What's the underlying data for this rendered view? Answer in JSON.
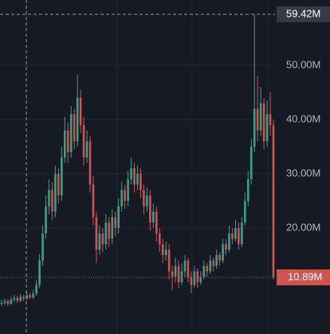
{
  "chart_data": {
    "type": "candlestick",
    "ylim": [
      0.44,
      62.06
    ],
    "yticks": [
      {
        "value": 20,
        "label": "20.00M"
      },
      {
        "value": 30,
        "label": "30.00M"
      },
      {
        "value": 40,
        "label": "40.00M"
      },
      {
        "value": 50,
        "label": "50.00M"
      }
    ],
    "grid": true,
    "up_color": "#3d9e8c",
    "down_color": "#d0544e",
    "crosshair": {
      "value": 59.42,
      "label": "59.42M"
    },
    "last_price": {
      "value": 10.89,
      "label": "10.89M"
    },
    "candles": [
      [
        6.0,
        6.8,
        5.6,
        6.2
      ],
      [
        6.2,
        7.0,
        5.8,
        6.5
      ],
      [
        6.5,
        6.9,
        5.6,
        6.0
      ],
      [
        6.0,
        7.3,
        5.8,
        6.8
      ],
      [
        6.8,
        7.6,
        6.4,
        7.1
      ],
      [
        7.1,
        7.5,
        6.1,
        6.6
      ],
      [
        6.6,
        7.8,
        6.3,
        7.3
      ],
      [
        7.3,
        7.7,
        6.5,
        7.0
      ],
      [
        7.0,
        8.2,
        6.7,
        7.6
      ],
      [
        7.6,
        8.0,
        6.8,
        7.2
      ],
      [
        7.2,
        8.6,
        6.9,
        7.9
      ],
      [
        7.9,
        10.4,
        7.5,
        9.5
      ],
      [
        9.5,
        15.2,
        9.0,
        14.0
      ],
      [
        14.0,
        20.5,
        13.0,
        19.0
      ],
      [
        19.0,
        26.0,
        18.0,
        24.0
      ],
      [
        24.0,
        29.0,
        22.5,
        27.0
      ],
      [
        27.0,
        28.5,
        21.5,
        23.0
      ],
      [
        23.0,
        31.5,
        22.0,
        30.0
      ],
      [
        30.0,
        31.0,
        24.5,
        26.0
      ],
      [
        26.0,
        35.0,
        25.0,
        33.0
      ],
      [
        33.0,
        40.5,
        32.0,
        38.0
      ],
      [
        38.0,
        39.5,
        32.0,
        34.0
      ],
      [
        34.0,
        42.5,
        33.0,
        41.0
      ],
      [
        41.0,
        42.0,
        34.5,
        36.0
      ],
      [
        36.0,
        48.3,
        35.0,
        44.0
      ],
      [
        44.0,
        45.5,
        37.5,
        39.0
      ],
      [
        39.0,
        40.5,
        31.5,
        33.0
      ],
      [
        33.0,
        38.0,
        32.0,
        36.0
      ],
      [
        36.0,
        37.0,
        26.5,
        28.0
      ],
      [
        28.0,
        29.5,
        20.5,
        22.0
      ],
      [
        22.0,
        23.0,
        13.5,
        16.0
      ],
      [
        16.0,
        20.5,
        15.0,
        19.0
      ],
      [
        19.0,
        20.0,
        15.5,
        17.0
      ],
      [
        17.0,
        22.5,
        16.0,
        21.0
      ],
      [
        21.0,
        22.0,
        16.5,
        18.0
      ],
      [
        18.0,
        23.5,
        17.0,
        22.0
      ],
      [
        22.0,
        23.0,
        18.5,
        20.0
      ],
      [
        20.0,
        25.5,
        19.0,
        24.0
      ],
      [
        24.0,
        28.5,
        23.0,
        27.0
      ],
      [
        27.0,
        28.0,
        23.5,
        25.0
      ],
      [
        25.0,
        30.5,
        24.0,
        29.0
      ],
      [
        29.0,
        33.0,
        28.0,
        31.0
      ],
      [
        31.0,
        32.0,
        26.5,
        28.0
      ],
      [
        28.0,
        31.5,
        27.0,
        30.0
      ],
      [
        30.0,
        31.0,
        25.5,
        27.0
      ],
      [
        27.0,
        28.0,
        22.5,
        24.0
      ],
      [
        24.0,
        27.5,
        23.0,
        26.0
      ],
      [
        26.0,
        27.0,
        19.5,
        21.0
      ],
      [
        21.0,
        24.5,
        20.0,
        23.0
      ],
      [
        23.0,
        24.0,
        17.5,
        19.0
      ],
      [
        19.0,
        20.0,
        15.5,
        17.0
      ],
      [
        17.0,
        18.0,
        13.5,
        15.0
      ],
      [
        15.0,
        17.5,
        14.0,
        16.0
      ],
      [
        16.0,
        17.0,
        10.5,
        12.0
      ],
      [
        12.0,
        13.0,
        8.5,
        11.0
      ],
      [
        11.0,
        14.5,
        10.0,
        13.0
      ],
      [
        13.0,
        14.0,
        9.0,
        10.0
      ],
      [
        10.0,
        13.5,
        9.5,
        12.0
      ],
      [
        12.0,
        15.0,
        11.0,
        14.0
      ],
      [
        14.0,
        14.5,
        10.0,
        11.0
      ],
      [
        11.0,
        12.0,
        8.0,
        9.5
      ],
      [
        9.5,
        13.0,
        9.0,
        12.0
      ],
      [
        12.0,
        12.5,
        9.0,
        10.0
      ],
      [
        10.0,
        12.0,
        9.5,
        11.0
      ],
      [
        11.0,
        14.0,
        10.5,
        13.0
      ],
      [
        13.0,
        13.5,
        11.0,
        12.0
      ],
      [
        12.0,
        15.0,
        11.5,
        14.0
      ],
      [
        14.0,
        14.5,
        12.0,
        13.0
      ],
      [
        13.0,
        16.0,
        12.5,
        15.0
      ],
      [
        15.0,
        15.5,
        13.0,
        14.0
      ],
      [
        14.0,
        18.0,
        13.5,
        17.0
      ],
      [
        17.0,
        18.0,
        15.0,
        16.0
      ],
      [
        16.0,
        20.5,
        15.5,
        19.0
      ],
      [
        19.0,
        20.0,
        17.0,
        18.0
      ],
      [
        18.0,
        21.5,
        17.5,
        20.0
      ],
      [
        20.0,
        21.0,
        16.0,
        17.0
      ],
      [
        17.0,
        22.0,
        16.5,
        21.0
      ],
      [
        21.0,
        26.5,
        20.5,
        25.0
      ],
      [
        25.0,
        30.5,
        24.0,
        29.0
      ],
      [
        29.0,
        36.5,
        28.0,
        35.0
      ],
      [
        35.0,
        59.4,
        34.0,
        42.0
      ],
      [
        42.0,
        48.0,
        36.0,
        38.0
      ],
      [
        38.0,
        46.0,
        37.0,
        43.0
      ],
      [
        43.0,
        44.0,
        34.5,
        36.0
      ],
      [
        36.0,
        43.5,
        35.0,
        41.0
      ],
      [
        41.0,
        45.0,
        37.0,
        39.0
      ],
      [
        39.0,
        40.0,
        10.5,
        10.89
      ]
    ]
  }
}
